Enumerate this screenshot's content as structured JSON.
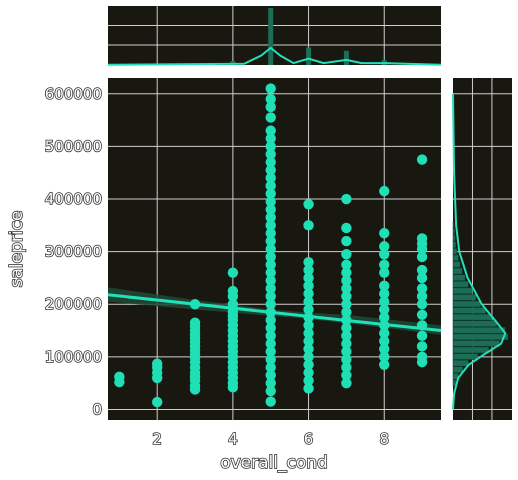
{
  "chart_data": {
    "type": "scatter",
    "kind": "jointplot-regression",
    "title": "",
    "xlabel": "overall_cond",
    "ylabel": "saleprice",
    "xlim": [
      0.7,
      9.5
    ],
    "ylim": [
      -20000,
      630000
    ],
    "xticks": [
      "2",
      "4",
      "6",
      "8"
    ],
    "yticks": [
      "0",
      "100000",
      "200000",
      "300000",
      "400000",
      "500000",
      "600000"
    ],
    "grid": true,
    "colors": {
      "background": "#181710",
      "points": "#1fe0b4",
      "regression": "#22e0b8",
      "ci_band": "#1f4a36",
      "histogram": "#1b6e55",
      "grid": "#cfcfcf"
    },
    "series": [
      {
        "points": [
          {
            "x": 1,
            "y": [
              52000,
              62000
            ]
          },
          {
            "x": 2,
            "y": [
              14000,
              60000,
              70000,
              80000,
              87000
            ]
          },
          {
            "x": 3,
            "y": [
              38000,
              45000,
              55000,
              62000,
              70000,
              80000,
              90000,
              98000,
              105000,
              112000,
              120000,
              128000,
              135000,
              142000,
              150000,
              158000,
              165000,
              200000
            ]
          },
          {
            "x": 4,
            "y": [
              42000,
              50000,
              60000,
              70000,
              80000,
              90000,
              100000,
              110000,
              120000,
              130000,
              140000,
              150000,
              160000,
              170000,
              178000,
              186000,
              200000,
              215000,
              225000,
              260000
            ]
          },
          {
            "x": 5,
            "y": [
              15000,
              35000,
              50000,
              65000,
              80000,
              95000,
              110000,
              125000,
              140000,
              155000,
              170000,
              185000,
              200000,
              215000,
              230000,
              245000,
              260000,
              275000,
              290000,
              305000,
              320000,
              335000,
              350000,
              365000,
              380000,
              395000,
              410000,
              425000,
              440000,
              455000,
              470000,
              485000,
              500000,
              515000,
              530000,
              555000,
              575000,
              590000,
              610000
            ]
          },
          {
            "x": 6,
            "y": [
              40000,
              55000,
              70000,
              85000,
              100000,
              115000,
              130000,
              145000,
              160000,
              175000,
              190000,
              205000,
              220000,
              235000,
              250000,
              265000,
              280000,
              350000,
              390000
            ]
          },
          {
            "x": 7,
            "y": [
              50000,
              65000,
              80000,
              95000,
              110000,
              125000,
              140000,
              155000,
              170000,
              185000,
              200000,
              215000,
              230000,
              245000,
              260000,
              275000,
              295000,
              320000,
              345000,
              400000
            ]
          },
          {
            "x": 8,
            "y": [
              85000,
              100000,
              115000,
              130000,
              145000,
              160000,
              175000,
              190000,
              205000,
              220000,
              235000,
              260000,
              275000,
              295000,
              310000,
              335000,
              415000
            ]
          },
          {
            "x": 9,
            "y": [
              90000,
              100000,
              120000,
              140000,
              160000,
              180000,
              200000,
              215000,
              230000,
              250000,
              265000,
              290000,
              305000,
              315000,
              325000,
              475000
            ]
          }
        ]
      }
    ],
    "regression": {
      "x": [
        0.7,
        9.5
      ],
      "y": [
        218000,
        150000
      ]
    },
    "confidence_band": {
      "x": [
        0.7,
        3,
        5,
        6,
        7,
        9.5
      ],
      "lower": [
        205000,
        190000,
        178000,
        172000,
        164000,
        142000
      ],
      "upper": [
        232000,
        208000,
        190000,
        184000,
        180000,
        160000
      ]
    },
    "marginal_x": {
      "type": "histogram+kde",
      "bins": [
        {
          "x": 1,
          "count": 1
        },
        {
          "x": 2,
          "count": 5
        },
        {
          "x": 3,
          "count": 25
        },
        {
          "x": 4,
          "count": 57
        },
        {
          "x": 5,
          "count": 820
        },
        {
          "x": 6,
          "count": 252
        },
        {
          "x": 7,
          "count": 205
        },
        {
          "x": 8,
          "count": 72
        },
        {
          "x": 9,
          "count": 22
        }
      ],
      "kde": [
        [
          0.7,
          0.003
        ],
        [
          4.3,
          0.02
        ],
        [
          4.75,
          0.15
        ],
        [
          5,
          0.27
        ],
        [
          5.25,
          0.15
        ],
        [
          5.6,
          0.03
        ],
        [
          6,
          0.1
        ],
        [
          6.4,
          0.03
        ],
        [
          7,
          0.08
        ],
        [
          7.4,
          0.03
        ],
        [
          8,
          0.03
        ],
        [
          9.5,
          0.003
        ]
      ]
    },
    "marginal_y": {
      "type": "histogram+kde",
      "bins": [
        {
          "y": 50000,
          "count": 5
        },
        {
          "y": 62500,
          "count": 10
        },
        {
          "y": 75000,
          "count": 18
        },
        {
          "y": 87500,
          "count": 28
        },
        {
          "y": 100000,
          "count": 45
        },
        {
          "y": 112500,
          "count": 65
        },
        {
          "y": 125000,
          "count": 85
        },
        {
          "y": 137500,
          "count": 100
        },
        {
          "y": 150000,
          "count": 95
        },
        {
          "y": 162500,
          "count": 80
        },
        {
          "y": 175000,
          "count": 70
        },
        {
          "y": 187500,
          "count": 60
        },
        {
          "y": 200000,
          "count": 50
        },
        {
          "y": 212500,
          "count": 42
        },
        {
          "y": 225000,
          "count": 35
        },
        {
          "y": 237500,
          "count": 28
        },
        {
          "y": 250000,
          "count": 22
        },
        {
          "y": 262500,
          "count": 17
        },
        {
          "y": 275000,
          "count": 13
        },
        {
          "y": 287500,
          "count": 10
        },
        {
          "y": 300000,
          "count": 7
        },
        {
          "y": 312500,
          "count": 5
        },
        {
          "y": 325000,
          "count": 4
        },
        {
          "y": 337500,
          "count": 3
        },
        {
          "y": 350000,
          "count": 2
        }
      ],
      "kde": [
        [
          600000,
          0.0
        ],
        [
          450000,
          0.02
        ],
        [
          350000,
          0.06
        ],
        [
          300000,
          0.12
        ],
        [
          250000,
          0.28
        ],
        [
          200000,
          0.55
        ],
        [
          170000,
          0.8
        ],
        [
          145000,
          1.0
        ],
        [
          125000,
          0.92
        ],
        [
          105000,
          0.6
        ],
        [
          85000,
          0.3
        ],
        [
          60000,
          0.1
        ],
        [
          30000,
          0.02
        ],
        [
          0,
          0.0
        ]
      ]
    }
  }
}
